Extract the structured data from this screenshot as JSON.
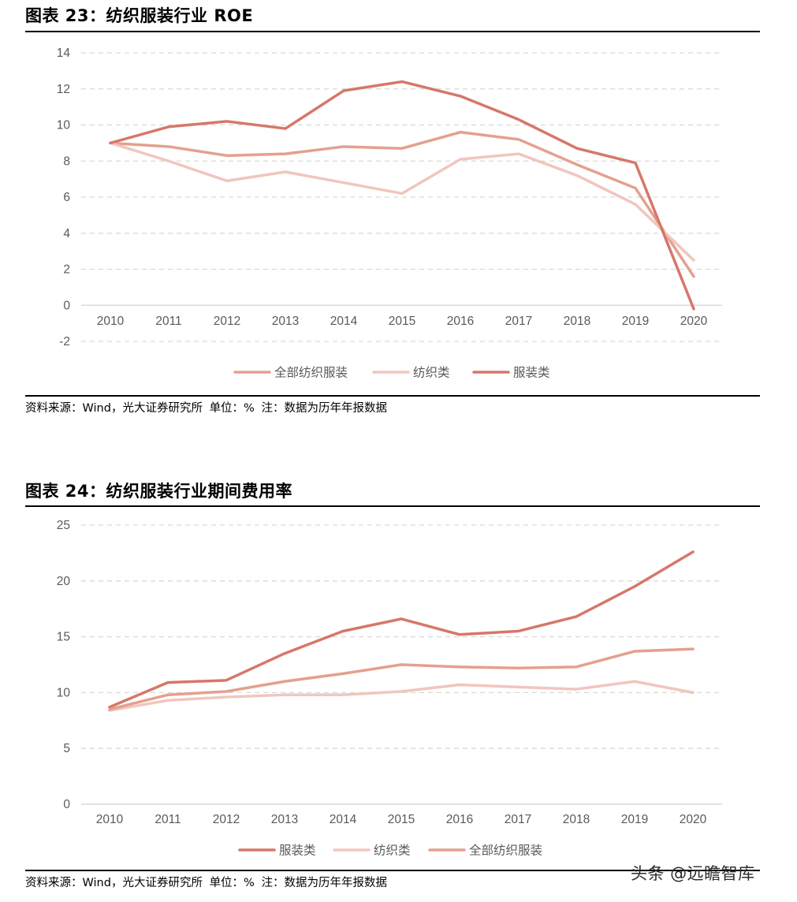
{
  "fig23": {
    "title": "图表 23：纺织服装行业 ROE",
    "source": "资料来源：Wind，光大证券研究所",
    "unit": "单位：%",
    "note": "注：数据为历年年报数据"
  },
  "fig24": {
    "title": "图表 24：纺织服装行业期间费用率",
    "source": "资料来源：Wind，光大证券研究所",
    "unit": "单位：%",
    "note": "注：数据为历年年报数据"
  },
  "watermark": "头条 @远瞻智库",
  "colors": {
    "fuzhuang": "#d6776a",
    "fangzhi": "#f0c6bd",
    "quanbu": "#e4a08f",
    "grid": "#d9d9d9",
    "axis": "#d9d9d9",
    "tick_text": "#595959"
  },
  "chart_data": [
    {
      "type": "line",
      "title": "纺织服装行业 ROE",
      "xlabel": "",
      "ylabel": "",
      "categories": [
        "2010",
        "2011",
        "2012",
        "2013",
        "2014",
        "2015",
        "2016",
        "2017",
        "2018",
        "2019",
        "2020"
      ],
      "yticks": [
        14,
        12,
        10,
        8,
        6,
        4,
        2,
        0,
        -2
      ],
      "ylim": [
        -2,
        14
      ],
      "grid": true,
      "legend_position": "bottom",
      "series": [
        {
          "name": "全部纺织服装",
          "color_key": "quanbu",
          "values": [
            9.0,
            8.8,
            8.3,
            8.4,
            8.8,
            8.7,
            9.6,
            9.2,
            7.8,
            6.5,
            1.6
          ]
        },
        {
          "name": "纺织类",
          "color_key": "fangzhi",
          "values": [
            9.0,
            8.0,
            6.9,
            7.4,
            6.8,
            6.2,
            8.1,
            8.4,
            7.2,
            5.6,
            2.5
          ]
        },
        {
          "name": "服装类",
          "color_key": "fuzhuang",
          "values": [
            9.0,
            9.9,
            10.2,
            9.8,
            11.9,
            12.4,
            11.6,
            10.3,
            8.7,
            7.9,
            -0.2
          ]
        }
      ]
    },
    {
      "type": "line",
      "title": "纺织服装行业期间费用率",
      "xlabel": "",
      "ylabel": "",
      "categories": [
        "2010",
        "2011",
        "2012",
        "2013",
        "2014",
        "2015",
        "2016",
        "2017",
        "2018",
        "2019",
        "2020"
      ],
      "yticks": [
        25,
        20,
        15,
        10,
        5,
        0
      ],
      "ylim": [
        0,
        25
      ],
      "grid": true,
      "legend_position": "bottom",
      "series": [
        {
          "name": "服装类",
          "color_key": "fuzhuang",
          "values": [
            8.7,
            10.9,
            11.1,
            13.5,
            15.5,
            16.6,
            15.2,
            15.5,
            16.8,
            19.5,
            22.6
          ]
        },
        {
          "name": "纺织类",
          "color_key": "fangzhi",
          "values": [
            8.4,
            9.3,
            9.6,
            9.8,
            9.8,
            10.1,
            10.7,
            10.5,
            10.3,
            11.0,
            10.0
          ]
        },
        {
          "name": "全部纺织服装",
          "color_key": "quanbu",
          "values": [
            8.5,
            9.8,
            10.1,
            11.0,
            11.7,
            12.5,
            12.3,
            12.2,
            12.3,
            13.7,
            13.9
          ]
        }
      ]
    }
  ]
}
